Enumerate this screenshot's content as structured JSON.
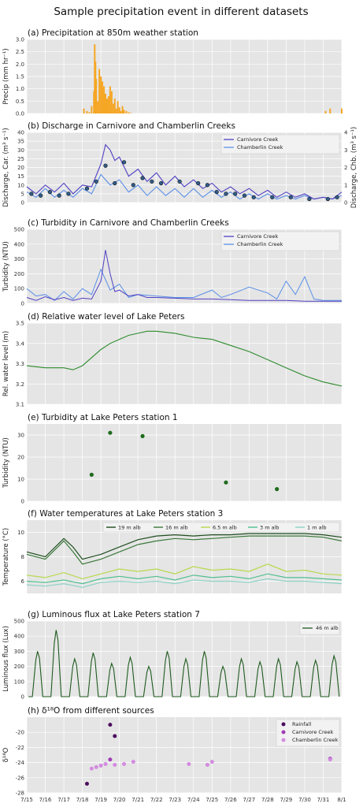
{
  "figure": {
    "title": "Sample precipitation event in different datasets"
  },
  "x_axis": {
    "range": [
      "2017-07-15",
      "2017-08-01"
    ],
    "tick_labels": [
      "7/15",
      "7/16",
      "7/17",
      "7/18",
      "7/19",
      "7/20",
      "7/21",
      "7/22",
      "7/23",
      "7/24",
      "7/25",
      "7/26",
      "7/27",
      "7/28",
      "7/29",
      "7/30",
      "7/31",
      "8/1"
    ]
  },
  "colors": {
    "panel_bg": "#e5e5e5",
    "grid": "#ffffff",
    "precip": "#f5a623",
    "carnivore": "#4f3fc2",
    "chamberlin": "#5a8fe6",
    "lake_level": "#2e8b2e",
    "turb_lake": "#1f6b1f",
    "lux": "#1e5a1e",
    "rainfall": "#4b0f5e",
    "carnivore_iso": "#a13cb8",
    "chamberlin_iso": "#d38be0"
  },
  "chart_data": [
    {
      "id": "a",
      "type": "bar",
      "title": "(a) Precipitation at 850m weather station",
      "ylabel": "Precip (mm hr⁻¹)",
      "ylim": [
        0,
        3.0
      ],
      "yticks": [
        0.0,
        0.5,
        1.0,
        1.5,
        2.0,
        2.5,
        3.0
      ],
      "ytick_labels": [
        "0.0",
        "0.5",
        "1.0",
        "1.5",
        "2.0",
        "2.5",
        "3.0"
      ],
      "series": [
        {
          "x": [
            "7/18 02:00",
            "7/18 06:00",
            "7/18 09:00",
            "7/18 12:00",
            "7/18 15:00",
            "7/18 16:00",
            "7/18 17:00",
            "7/18 18:00",
            "7/18 20:00",
            "7/18 22:00",
            "7/19 00:00",
            "7/19 02:00",
            "7/19 04:00",
            "7/19 06:00",
            "7/19 08:00",
            "7/19 10:00",
            "7/19 12:00",
            "7/19 14:00",
            "7/19 16:00",
            "7/19 18:00",
            "7/19 20:00",
            "7/19 22:00",
            "7/20 00:00",
            "7/20 02:00",
            "7/20 04:00",
            "7/20 06:00",
            "7/20 09:00",
            "7/20 12:00",
            "7/20 15:00",
            "7/31 03:00",
            "7/31 09:00",
            "8/1 00:00"
          ],
          "values": [
            0.2,
            0.1,
            0.05,
            0.3,
            0.9,
            2.8,
            2.1,
            1.4,
            0.5,
            1.8,
            1.5,
            1.3,
            1.1,
            0.8,
            0.6,
            0.7,
            1.1,
            0.9,
            0.4,
            0.6,
            0.2,
            0.5,
            0.25,
            0.1,
            0.3,
            0.15,
            0.1,
            0.05,
            0.02,
            0.1,
            0.2,
            0.2
          ]
        }
      ]
    },
    {
      "id": "b",
      "type": "line",
      "title": "(b) Discharge in Carnivore and Chamberlin Creeks",
      "ylabel": "Discharge, Car. (m³ s⁻¹)",
      "ylabel_right": "Discharge, Chb. (m³ s⁻¹)",
      "ylim": [
        0,
        40
      ],
      "yticks": [
        0,
        5,
        10,
        15,
        20,
        25,
        30,
        35,
        40
      ],
      "ylim_right": [
        0,
        4
      ],
      "yticks_right": [
        0,
        1,
        2,
        3,
        4
      ],
      "legend": "top-right",
      "series": [
        {
          "name": "Carnivore Creek",
          "axis": "left",
          "x": [
            "7/15",
            "7/15 12:00",
            "7/16",
            "7/16 12:00",
            "7/17",
            "7/17 12:00",
            "7/18",
            "7/18 12:00",
            "7/19",
            "7/19 06:00",
            "7/19 12:00",
            "7/19 18:00",
            "7/20",
            "7/20 12:00",
            "7/21",
            "7/21 12:00",
            "7/22",
            "7/22 12:00",
            "7/23",
            "7/23 12:00",
            "7/24",
            "7/24 12:00",
            "7/25",
            "7/25 12:00",
            "7/26",
            "7/26 12:00",
            "7/27",
            "7/27 12:00",
            "7/28",
            "7/28 12:00",
            "7/29",
            "7/29 12:00",
            "7/30",
            "7/30 12:00",
            "7/31",
            "7/31 12:00",
            "8/1"
          ],
          "values": [
            9,
            5,
            10,
            6,
            11,
            5,
            10,
            9,
            22,
            33,
            30,
            24,
            26,
            15,
            19,
            12,
            17,
            10,
            15,
            9,
            13,
            8,
            11,
            6,
            9,
            5,
            8,
            4,
            7,
            3,
            6,
            3,
            5,
            2,
            3,
            2,
            6
          ]
        },
        {
          "name": "Chamberlin Creek",
          "axis": "right",
          "x": [
            "7/15",
            "7/15 12:00",
            "7/16",
            "7/16 12:00",
            "7/17",
            "7/17 12:00",
            "7/18",
            "7/18 12:00",
            "7/19",
            "7/19 12:00",
            "7/20",
            "7/20 12:00",
            "7/21",
            "7/21 12:00",
            "7/22",
            "7/22 12:00",
            "7/23",
            "7/23 12:00",
            "7/24",
            "7/24 12:00",
            "7/25",
            "7/25 12:00",
            "7/26",
            "7/26 12:00",
            "7/27",
            "7/27 12:00",
            "7/28",
            "7/28 12:00",
            "7/29",
            "7/29 12:00",
            "7/30",
            "7/30 12:00",
            "7/31",
            "7/31 12:00",
            "8/1"
          ],
          "values": [
            0.6,
            0.3,
            0.8,
            0.3,
            0.7,
            0.3,
            0.8,
            0.5,
            1.6,
            1.0,
            1.3,
            0.6,
            1.0,
            0.4,
            0.9,
            0.4,
            0.8,
            0.3,
            0.8,
            0.3,
            0.7,
            0.3,
            0.6,
            0.2,
            0.5,
            0.2,
            0.5,
            0.2,
            0.4,
            0.2,
            0.4,
            0.2,
            0.3,
            0.2,
            0.4
          ]
        }
      ],
      "markers": {
        "x": [
          "7/15 06:00",
          "7/15 18:00",
          "7/16 06:00",
          "7/16 18:00",
          "7/17 06:00",
          "7/18 06:00",
          "7/18 18:00",
          "7/19 06:00",
          "7/19 18:00",
          "7/20 06:00",
          "7/20 18:00",
          "7/21 06:00",
          "7/21 18:00",
          "7/22 06:00",
          "7/23 06:00",
          "7/24 06:00",
          "7/24 18:00",
          "7/25 06:00",
          "7/25 18:00",
          "7/26 06:00",
          "7/26 18:00",
          "7/27 06:00",
          "7/28 06:00",
          "7/29 06:00",
          "7/30 06:00",
          "7/31 06:00",
          "7/31 18:00"
        ],
        "values": [
          5,
          4,
          6,
          4,
          5,
          8,
          12,
          21,
          11,
          23,
          10,
          14,
          12,
          11,
          12,
          11,
          10,
          6,
          5,
          5,
          4,
          3,
          3,
          3,
          2,
          2,
          3
        ]
      }
    },
    {
      "id": "c",
      "type": "line",
      "title": "(c) Turbidity in Carnivore and Chamberlin Creeks",
      "ylabel": "Turbidity (NTU)",
      "ylim": [
        0,
        500
      ],
      "yticks": [
        0,
        100,
        200,
        300,
        400,
        500
      ],
      "legend": "top-right",
      "series": [
        {
          "name": "Carnivore Creek",
          "x": [
            "7/15",
            "7/15 12:00",
            "7/16",
            "7/16 12:00",
            "7/17",
            "7/17 12:00",
            "7/18",
            "7/18 12:00",
            "7/19",
            "7/19 06:00",
            "7/19 12:00",
            "7/19 18:00",
            "7/20",
            "7/20 12:00",
            "7/21",
            "7/21 12:00",
            "7/22",
            "7/23",
            "7/24",
            "7/25",
            "7/26",
            "7/27",
            "7/28",
            "7/29",
            "7/30",
            "7/31",
            "8/1"
          ],
          "values": [
            40,
            20,
            45,
            25,
            40,
            20,
            35,
            30,
            150,
            360,
            200,
            80,
            90,
            50,
            60,
            40,
            40,
            35,
            30,
            30,
            25,
            20,
            20,
            20,
            15,
            15,
            15
          ]
        },
        {
          "name": "Chamberlin Creek",
          "x": [
            "7/15",
            "7/15 12:00",
            "7/16",
            "7/16 12:00",
            "7/17",
            "7/17 12:00",
            "7/18",
            "7/18 12:00",
            "7/19",
            "7/19 12:00",
            "7/20",
            "7/20 12:00",
            "7/21",
            "7/22",
            "7/23",
            "7/24",
            "7/25",
            "7/25 12:00",
            "7/26",
            "7/27",
            "7/28",
            "7/28 12:00",
            "7/29",
            "7/29 12:00",
            "7/30",
            "7/30 12:00",
            "7/31",
            "8/1"
          ],
          "values": [
            100,
            50,
            60,
            20,
            80,
            30,
            100,
            60,
            230,
            90,
            130,
            40,
            60,
            50,
            40,
            40,
            90,
            40,
            60,
            110,
            70,
            30,
            150,
            60,
            180,
            30,
            20,
            20
          ]
        }
      ]
    },
    {
      "id": "d",
      "type": "line",
      "title": "(d) Relative water level of Lake Peters",
      "ylabel": "Rel. water level (m)",
      "ylim": [
        3.1,
        3.5
      ],
      "yticks": [
        3.1,
        3.2,
        3.3,
        3.4,
        3.5
      ],
      "ytick_labels": [
        "3.1",
        "3.2",
        "3.3",
        "3.4",
        "3.5"
      ],
      "series": [
        {
          "x": [
            "7/15",
            "7/16",
            "7/17",
            "7/17 12:00",
            "7/18",
            "7/18 12:00",
            "7/19",
            "7/19 12:00",
            "7/20",
            "7/20 12:00",
            "7/21",
            "7/21 12:00",
            "7/22",
            "7/23",
            "7/24",
            "7/25",
            "7/26",
            "7/27",
            "7/28",
            "7/29",
            "7/30",
            "7/31",
            "8/1"
          ],
          "values": [
            3.29,
            3.28,
            3.28,
            3.27,
            3.29,
            3.33,
            3.37,
            3.4,
            3.42,
            3.44,
            3.45,
            3.46,
            3.46,
            3.45,
            3.43,
            3.42,
            3.39,
            3.36,
            3.32,
            3.28,
            3.24,
            3.21,
            3.19
          ]
        }
      ]
    },
    {
      "id": "e",
      "type": "scatter",
      "title": "(e) Turbidity at Lake Peters station 1",
      "ylabel": "Turbidity (NTU)",
      "ylim": [
        0,
        35
      ],
      "yticks": [
        0,
        10,
        20,
        30
      ],
      "series": [
        {
          "x": [
            "7/18 12:00",
            "7/19 12:00",
            "7/21 06:00",
            "7/25 18:00",
            "7/28 12:00"
          ],
          "values": [
            12,
            31,
            29.5,
            8.5,
            5.5
          ]
        }
      ]
    },
    {
      "id": "f",
      "type": "line",
      "title": "(f) Water temperatures at Lake Peters station 3",
      "ylabel": "Temperature (°C)",
      "ylim": [
        5,
        11
      ],
      "yticks": [
        6,
        8,
        10
      ],
      "legend": "top-right",
      "series": [
        {
          "name": "19 m alb",
          "color": "#1e4d1e",
          "x": [
            "7/15",
            "7/16",
            "7/17",
            "7/17 12:00",
            "7/18",
            "7/19",
            "7/20",
            "7/21",
            "7/22",
            "7/23",
            "7/24",
            "7/25",
            "7/26",
            "7/27",
            "7/28",
            "7/29",
            "7/30",
            "7/31",
            "8/1"
          ],
          "values": [
            8.4,
            8.0,
            9.5,
            8.8,
            7.8,
            8.2,
            8.8,
            9.4,
            9.7,
            9.8,
            9.7,
            9.8,
            9.8,
            9.9,
            9.9,
            9.9,
            9.9,
            9.8,
            9.6
          ]
        },
        {
          "name": "16 m alb",
          "color": "#3b7a3b",
          "x": [
            "7/15",
            "7/16",
            "7/17",
            "7/17 12:00",
            "7/18",
            "7/19",
            "7/20",
            "7/21",
            "7/22",
            "7/23",
            "7/24",
            "7/25",
            "7/26",
            "7/27",
            "7/28",
            "7/29",
            "7/30",
            "7/31",
            "8/1"
          ],
          "values": [
            8.2,
            7.8,
            9.3,
            8.4,
            7.4,
            7.8,
            8.4,
            9.0,
            9.3,
            9.5,
            9.4,
            9.5,
            9.6,
            9.7,
            9.7,
            9.7,
            9.7,
            9.6,
            9.3
          ]
        },
        {
          "name": "6.5 m alb",
          "color": "#b6d94c",
          "x": [
            "7/15",
            "7/16",
            "7/17",
            "7/18",
            "7/19",
            "7/20",
            "7/21",
            "7/22",
            "7/23",
            "7/24",
            "7/25",
            "7/26",
            "7/27",
            "7/28",
            "7/29",
            "7/30",
            "7/31",
            "8/1"
          ],
          "values": [
            6.5,
            6.3,
            6.7,
            6.2,
            6.6,
            7.0,
            6.8,
            7.0,
            6.6,
            7.2,
            6.9,
            7.0,
            6.8,
            7.4,
            6.8,
            6.9,
            6.6,
            6.5
          ]
        },
        {
          "name": "3 m alb",
          "color": "#4fbf8f",
          "x": [
            "7/15",
            "7/16",
            "7/17",
            "7/18",
            "7/19",
            "7/20",
            "7/21",
            "7/22",
            "7/23",
            "7/24",
            "7/25",
            "7/26",
            "7/27",
            "7/28",
            "7/29",
            "7/30",
            "7/31",
            "8/1"
          ],
          "values": [
            6.0,
            5.9,
            6.1,
            5.8,
            6.2,
            6.4,
            6.2,
            6.4,
            6.1,
            6.5,
            6.3,
            6.4,
            6.2,
            6.6,
            6.3,
            6.3,
            6.2,
            6.1
          ]
        },
        {
          "name": "1 m alb",
          "color": "#8ed1c4",
          "x": [
            "7/15",
            "7/16",
            "7/17",
            "7/18",
            "7/19",
            "7/20",
            "7/21",
            "7/22",
            "7/23",
            "7/24",
            "7/25",
            "7/26",
            "7/27",
            "7/28",
            "7/29",
            "7/30",
            "7/31",
            "8/1"
          ],
          "values": [
            5.7,
            5.6,
            5.8,
            5.5,
            5.9,
            6.0,
            5.9,
            6.0,
            5.8,
            6.1,
            6.0,
            6.0,
            5.9,
            6.2,
            6.0,
            6.0,
            5.9,
            5.8
          ]
        }
      ]
    },
    {
      "id": "g",
      "type": "line",
      "title": "(g) Luminous flux at Lake Peters station 7",
      "ylabel": "Luminous flux (Lux)",
      "ylim": [
        0,
        500
      ],
      "yticks": [
        0,
        100,
        200,
        300,
        400,
        500
      ],
      "legend": "top-right",
      "series": [
        {
          "name": "46 m alb",
          "daily_peak_x": [
            "7/15 14:00",
            "7/16 14:00",
            "7/17 14:00",
            "7/18 14:00",
            "7/19 14:00",
            "7/20 14:00",
            "7/21 14:00",
            "7/22 14:00",
            "7/23 14:00",
            "7/24 14:00",
            "7/25 14:00",
            "7/26 14:00",
            "7/27 14:00",
            "7/28 14:00",
            "7/29 14:00",
            "7/30 14:00",
            "7/31 14:00"
          ],
          "daily_peak_values": [
            300,
            440,
            250,
            290,
            220,
            260,
            200,
            300,
            250,
            300,
            200,
            250,
            230,
            250,
            230,
            240,
            270
          ]
        }
      ]
    },
    {
      "id": "h",
      "type": "scatter",
      "title": "(h) δ¹⁸O from different sources",
      "ylabel": "δ¹⁸O",
      "ylim": [
        -28,
        -18
      ],
      "yticks": [
        -28,
        -26,
        -24,
        -22,
        -20
      ],
      "legend": "top-right",
      "series": [
        {
          "name": "Rainfall",
          "x": [
            "7/18 06:00",
            "7/19 12:00",
            "7/19 18:00"
          ],
          "values": [
            -26.8,
            -19.0,
            -20.5
          ]
        },
        {
          "name": "Carnivore Creek",
          "x": [
            "7/19 12:00",
            "7/31 09:00"
          ],
          "values": [
            -23.6,
            -23.5
          ]
        },
        {
          "name": "Chamberlin Creek",
          "x": [
            "7/18 12:00",
            "7/18 18:00",
            "7/19 00:00",
            "7/19 06:00",
            "7/19 18:00",
            "7/20 06:00",
            "7/20 18:00",
            "7/23 18:00",
            "7/24 18:00",
            "7/25 00:00",
            "7/31 09:00"
          ],
          "values": [
            -24.8,
            -24.6,
            -24.4,
            -24.2,
            -24.3,
            -24.2,
            -23.9,
            -24.2,
            -24.3,
            -23.9,
            -23.6
          ]
        }
      ]
    }
  ]
}
